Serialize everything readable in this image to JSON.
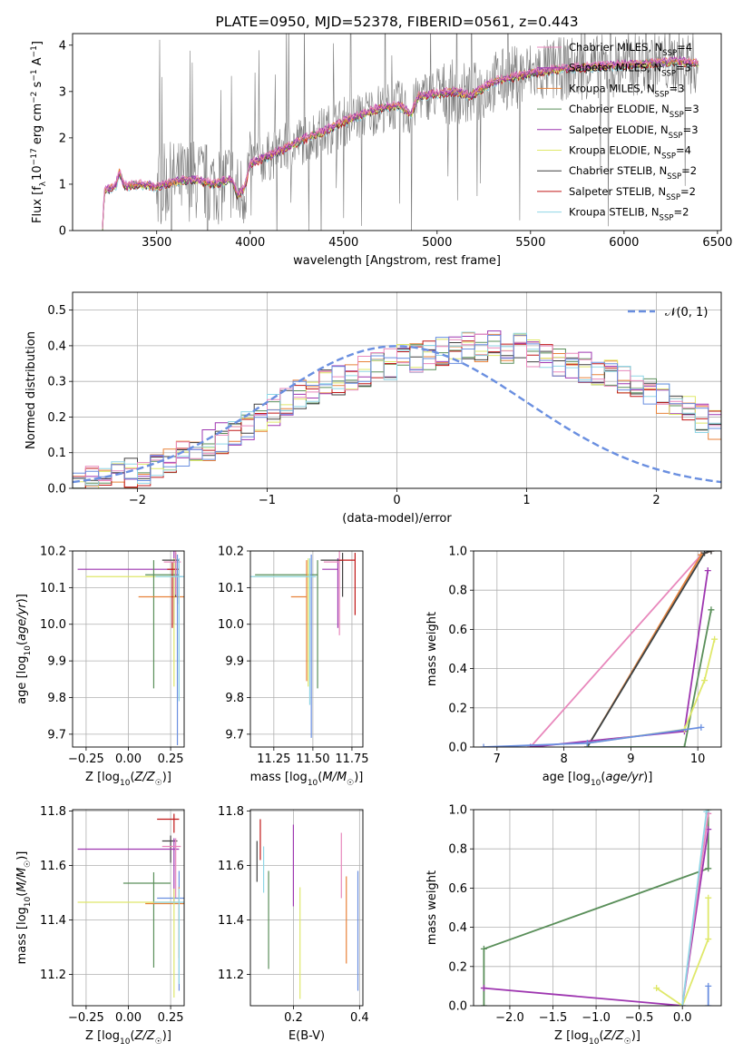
{
  "colors": {
    "orange": "#e8823a",
    "green": "#5a8f5a",
    "purple": "#9e36b0",
    "yellow": "#dfe86a",
    "dark": "#404040",
    "red": "#c01818",
    "cyan": "#8fd6e6",
    "pink": "#e888bc",
    "blue": "#6a8fe0",
    "spec": "#7a7a7a",
    "grid": "#b0b0b0"
  },
  "chart_data": [
    {
      "id": "spectrum",
      "type": "line",
      "title": "PLATE=0950, MJD=52378, FIBERID=0561, z=0.443",
      "xlabel": "wavelength [Angstrom, rest frame]",
      "ylabel": "Flux [f_λ 10^-17 erg cm^-2 s^-1 A^-1]",
      "xlim": [
        3050,
        6520
      ],
      "ylim": [
        0,
        4.25
      ],
      "xticks": [
        3500,
        4000,
        4500,
        5000,
        5500,
        6000,
        6500
      ],
      "yticks": [
        0,
        1,
        2,
        3,
        4
      ],
      "grid": false,
      "legend_position": "top-right",
      "legend": [
        {
          "prefix": "Chabrier MILES, N",
          "sub": "SSP",
          "suffix": "=4",
          "color": "pink"
        },
        {
          "prefix": "Salpeter MILES, N",
          "sub": "SSP",
          "suffix": "=3",
          "color": "purple"
        },
        {
          "prefix": "Kroupa MILES, N",
          "sub": "SSP",
          "suffix": "=3",
          "color": "orange"
        },
        {
          "prefix": "Chabrier ELODIE, N",
          "sub": "SSP",
          "suffix": "=3",
          "color": "green"
        },
        {
          "prefix": "Salpeter ELODIE, N",
          "sub": "SSP",
          "suffix": "=3",
          "color": "purple"
        },
        {
          "prefix": "Kroupa ELODIE, N",
          "sub": "SSP",
          "suffix": "=4",
          "color": "yellow"
        },
        {
          "prefix": "Chabrier STELIB, N",
          "sub": "SSP",
          "suffix": "=2",
          "color": "dark"
        },
        {
          "prefix": "Salpeter STELIB, N",
          "sub": "SSP",
          "suffix": "=2",
          "color": "red"
        },
        {
          "prefix": "Kroupa STELIB, N",
          "sub": "SSP",
          "suffix": "=2",
          "color": "cyan"
        }
      ],
      "model_shape": [
        [
          3210,
          0
        ],
        [
          3220,
          0.85
        ],
        [
          3280,
          0.95
        ],
        [
          3300,
          1.25
        ],
        [
          3330,
          0.95
        ],
        [
          3400,
          1.0
        ],
        [
          3500,
          0.95
        ],
        [
          3600,
          1.05
        ],
        [
          3700,
          1.1
        ],
        [
          3800,
          1.0
        ],
        [
          3900,
          1.1
        ],
        [
          3933,
          0.75
        ],
        [
          3968,
          0.9
        ],
        [
          4000,
          1.45
        ],
        [
          4100,
          1.6
        ],
        [
          4200,
          1.8
        ],
        [
          4300,
          2.0
        ],
        [
          4400,
          2.15
        ],
        [
          4500,
          2.35
        ],
        [
          4600,
          2.5
        ],
        [
          4700,
          2.65
        ],
        [
          4800,
          2.7
        ],
        [
          4861,
          2.5
        ],
        [
          4900,
          2.9
        ],
        [
          5000,
          2.95
        ],
        [
          5100,
          3.0
        ],
        [
          5175,
          2.9
        ],
        [
          5300,
          3.2
        ],
        [
          5500,
          3.4
        ],
        [
          5700,
          3.5
        ],
        [
          5900,
          3.55
        ],
        [
          6100,
          3.6
        ],
        [
          6300,
          3.65
        ],
        [
          6400,
          3.6
        ]
      ]
    },
    {
      "id": "histogram",
      "type": "step",
      "xlabel": "(data-model)/error",
      "ylabel": "Normed distribution",
      "xlim": [
        -2.5,
        2.5
      ],
      "ylim": [
        0,
        0.55
      ],
      "xticks": [
        -2,
        -1,
        0,
        1,
        2
      ],
      "yticks": [
        0,
        0.1,
        0.2,
        0.3,
        0.4,
        0.5
      ],
      "grid": true,
      "legend_position": "top-right",
      "reference_label": "𝒩(0, 1)",
      "reference_color": "#6a8fe0",
      "bin_width": 0.1,
      "bin_start": -2.5,
      "base_values": [
        0.01,
        0.02,
        0.02,
        0.03,
        0.04,
        0.05,
        0.06,
        0.08,
        0.09,
        0.1,
        0.12,
        0.14,
        0.16,
        0.18,
        0.2,
        0.22,
        0.24,
        0.26,
        0.28,
        0.29,
        0.3,
        0.32,
        0.33,
        0.34,
        0.35,
        0.36,
        0.37,
        0.37,
        0.38,
        0.39,
        0.4,
        0.4,
        0.4,
        0.39,
        0.39,
        0.38,
        0.37,
        0.36,
        0.35,
        0.34,
        0.33,
        0.32,
        0.3,
        0.29,
        0.27,
        0.25,
        0.24,
        0.22,
        0.2,
        0.18,
        0.16,
        0.14,
        0.13,
        0.11,
        0.1,
        0.09,
        0.08,
        0.07,
        0.06,
        0.05,
        0.04,
        0.03,
        0.03,
        0.02,
        0.02,
        0.01
      ]
    },
    {
      "id": "age_vs_Z",
      "type": "errorbar",
      "xlabel": "Z [log10(Z/Z☉)]",
      "ylabel": "age  [log10(age/yr)]",
      "xlim": [
        -0.33,
        0.33
      ],
      "ylim": [
        9.665,
        10.2
      ],
      "xticks": [
        -0.25,
        0.0,
        0.25
      ],
      "xticklabels": [
        "−0.25",
        "0.00",
        "0.25"
      ],
      "yticks": [
        9.7,
        9.8,
        9.9,
        10.0,
        10.1,
        10.2
      ],
      "points": [
        {
          "color": "purple",
          "x": 0.27,
          "xerr": [
            0.57,
            0.03
          ],
          "y": 10.15,
          "yerr": [
            0.15,
            0.05
          ]
        },
        {
          "color": "yellow",
          "x": 0.27,
          "xerr": [
            0.52,
            0.03
          ],
          "y": 10.13,
          "yerr": [
            0.3,
            0.05
          ]
        },
        {
          "color": "green",
          "x": 0.15,
          "xerr": [
            0.05,
            0.15
          ],
          "y": 10.135,
          "yerr": [
            0.31,
            0.04
          ]
        },
        {
          "color": "orange",
          "x": 0.3,
          "xerr": [
            0.24,
            0.03
          ],
          "y": 10.075,
          "yerr": [
            0.02,
            0.1
          ]
        },
        {
          "color": "dark",
          "x": 0.28,
          "xerr": [
            0.08,
            0.02
          ],
          "y": 10.175,
          "yerr": [
            0.1,
            0.02
          ]
        },
        {
          "color": "red",
          "x": 0.26,
          "xerr": [
            0.03,
            0.04
          ],
          "y": 10.15,
          "yerr": [
            0.16,
            0.02
          ]
        },
        {
          "color": "pink",
          "x": 0.28,
          "xerr": [
            0.07,
            0.03
          ],
          "y": 10.17,
          "yerr": [
            0.09,
            0.03
          ]
        },
        {
          "color": "blue",
          "x": 0.29,
          "xerr": [
            0.02,
            0.03
          ],
          "y": 10.13,
          "yerr": [
            0.46,
            0.06
          ]
        },
        {
          "color": "cyan",
          "x": 0.3,
          "xerr": [
            0.14,
            0.03
          ],
          "y": 10.13,
          "yerr": [
            0.34,
            0.05
          ]
        }
      ]
    },
    {
      "id": "age_vs_mass",
      "type": "errorbar",
      "xlabel": "mass [log10(M/M☉)]",
      "xlim": [
        11.1,
        11.82
      ],
      "ylim": [
        9.665,
        10.2
      ],
      "xticks": [
        11.25,
        11.5,
        11.75
      ],
      "yticks": [
        9.7,
        9.8,
        9.9,
        10.0,
        10.1,
        10.2
      ],
      "points": [
        {
          "color": "green",
          "x": 11.53,
          "xerr": [
            0.4,
            0.0
          ],
          "y": 10.135,
          "yerr": [
            0.31,
            0.04
          ]
        },
        {
          "color": "yellow",
          "x": 11.47,
          "xerr": [
            0.35,
            0.0
          ],
          "y": 10.13,
          "yerr": [
            0.3,
            0.05
          ]
        },
        {
          "color": "orange",
          "x": 11.46,
          "xerr": [
            0.1,
            0.0
          ],
          "y": 10.075,
          "yerr": [
            0.23,
            0.1
          ]
        },
        {
          "color": "blue",
          "x": 11.49,
          "xerr": [
            0.0,
            0.0
          ],
          "y": 10.13,
          "yerr": [
            0.44,
            0.06
          ]
        },
        {
          "color": "purple",
          "x": 11.66,
          "xerr": [
            0.1,
            0.0
          ],
          "y": 10.15,
          "yerr": [
            0.16,
            0.03
          ]
        },
        {
          "color": "pink",
          "x": 11.67,
          "xerr": [
            0.1,
            0.0
          ],
          "y": 10.17,
          "yerr": [
            0.2,
            0.03
          ]
        },
        {
          "color": "dark",
          "x": 11.69,
          "xerr": [
            0.14,
            0.0
          ],
          "y": 10.175,
          "yerr": [
            0.1,
            0.02
          ]
        },
        {
          "color": "red",
          "x": 11.77,
          "xerr": [
            0.1,
            0.0
          ],
          "y": 10.175,
          "yerr": [
            0.15,
            0.02
          ]
        },
        {
          "color": "cyan",
          "x": 11.48,
          "xerr": [
            0.38,
            0.04
          ],
          "y": 10.13,
          "yerr": [
            0.35,
            0.05
          ]
        }
      ]
    },
    {
      "id": "weight_vs_age",
      "type": "line",
      "xlabel": "age  [log10(age/yr)]",
      "ylabel": "mass weight",
      "xlim": [
        6.65,
        10.35
      ],
      "ylim": [
        0,
        1.0
      ],
      "xticks": [
        7,
        8,
        9,
        10
      ],
      "yticks": [
        0,
        0.2,
        0.4,
        0.6,
        0.8,
        1.0
      ],
      "series": [
        {
          "color": "pink",
          "points": [
            [
              7.5,
              0.0
            ],
            [
              10.05,
              0.98
            ],
            [
              10.2,
              1.0
            ]
          ]
        },
        {
          "color": "orange",
          "points": [
            [
              8.35,
              0.0
            ],
            [
              10.05,
              0.98
            ],
            [
              10.2,
              1.0
            ]
          ]
        },
        {
          "color": "cyan",
          "points": [
            [
              8.35,
              0.0
            ],
            [
              10.1,
              0.99
            ],
            [
              10.2,
              1.0
            ]
          ]
        },
        {
          "color": "dark",
          "points": [
            [
              8.35,
              0.0
            ],
            [
              10.1,
              0.99
            ],
            [
              10.2,
              1.0
            ]
          ]
        },
        {
          "color": "purple",
          "points": [
            [
              7.5,
              0.0
            ],
            [
              9.8,
              0.08
            ],
            [
              10.15,
              0.9
            ]
          ]
        },
        {
          "color": "green",
          "points": [
            [
              8.35,
              0.0
            ],
            [
              9.8,
              0.0
            ],
            [
              10.2,
              0.7
            ]
          ]
        },
        {
          "color": "yellow",
          "points": [
            [
              8.35,
              0.02
            ],
            [
              9.8,
              0.09
            ],
            [
              10.1,
              0.34
            ],
            [
              10.25,
              0.55
            ]
          ]
        },
        {
          "color": "blue",
          "points": [
            [
              6.8,
              0.0
            ],
            [
              8.35,
              0.02
            ],
            [
              10.05,
              0.1
            ]
          ]
        }
      ]
    },
    {
      "id": "mass_vs_Z",
      "type": "errorbar",
      "xlabel": "Z [log10(Z/Z☉)]",
      "ylabel": "mass [log10(M/M☉)]",
      "xlim": [
        -0.33,
        0.33
      ],
      "ylim": [
        11.085,
        11.805
      ],
      "xticks": [
        -0.25,
        0.0,
        0.25
      ],
      "xticklabels": [
        "−0.25",
        "0.00",
        "0.25"
      ],
      "yticks": [
        11.2,
        11.4,
        11.6,
        11.8
      ],
      "points": [
        {
          "color": "red",
          "x": 0.27,
          "xerr": [
            0.1,
            0.03
          ],
          "y": 11.77,
          "yerr": [
            0.05,
            0.02
          ]
        },
        {
          "color": "dark",
          "x": 0.25,
          "xerr": [
            0.05,
            0.04
          ],
          "y": 11.69,
          "yerr": [
            0.08,
            0.02
          ]
        },
        {
          "color": "purple",
          "x": 0.27,
          "xerr": [
            0.57,
            0.03
          ],
          "y": 11.66,
          "yerr": [
            0.2,
            0.04
          ]
        },
        {
          "color": "pink",
          "x": 0.28,
          "xerr": [
            0.08,
            0.03
          ],
          "y": 11.67,
          "yerr": [
            0.19,
            0.03
          ]
        },
        {
          "color": "green",
          "x": 0.15,
          "xerr": [
            0.18,
            0.1
          ],
          "y": 11.535,
          "yerr": [
            0.31,
            0.04
          ]
        },
        {
          "color": "blue",
          "x": 0.3,
          "xerr": [
            0.13,
            0.03
          ],
          "y": 11.48,
          "yerr": [
            0.34,
            0.1
          ]
        },
        {
          "color": "orange",
          "x": 0.3,
          "xerr": [
            0.2,
            0.03
          ],
          "y": 11.46,
          "yerr": [
            0.2,
            0.06
          ]
        },
        {
          "color": "yellow",
          "x": 0.27,
          "xerr": [
            0.57,
            0.03
          ],
          "y": 11.465,
          "yerr": [
            0.35,
            0.05
          ]
        },
        {
          "color": "cyan",
          "x": 0.3,
          "xerr": [
            0.15,
            0.03
          ],
          "y": 11.465,
          "yerr": [
            0.3,
            0.05
          ]
        }
      ]
    },
    {
      "id": "mass_vs_ebv",
      "type": "errorbar",
      "xlabel": "E(B-V)",
      "xlim": [
        0.07,
        0.41
      ],
      "ylim": [
        11.085,
        11.805
      ],
      "xticks": [
        0.2,
        0.4
      ],
      "yticks": [
        11.2,
        11.4,
        11.6,
        11.8
      ],
      "points": [
        {
          "color": "dark",
          "x": 0.09,
          "y": 11.6,
          "yerr": [
            0.06,
            0.09
          ]
        },
        {
          "color": "red",
          "x": 0.1,
          "y": 11.7,
          "yerr": [
            0.08,
            0.07
          ]
        },
        {
          "color": "cyan",
          "x": 0.11,
          "y": 11.58,
          "yerr": [
            0.08,
            0.09
          ]
        },
        {
          "color": "green",
          "x": 0.125,
          "y": 11.4,
          "yerr": [
            0.18,
            0.18
          ]
        },
        {
          "color": "purple",
          "x": 0.2,
          "y": 11.59,
          "yerr": [
            0.14,
            0.16
          ]
        },
        {
          "color": "yellow",
          "x": 0.22,
          "y": 11.33,
          "yerr": [
            0.22,
            0.19
          ]
        },
        {
          "color": "pink",
          "x": 0.345,
          "y": 11.6,
          "yerr": [
            0.12,
            0.12
          ]
        },
        {
          "color": "orange",
          "x": 0.36,
          "y": 11.4,
          "yerr": [
            0.16,
            0.16
          ]
        },
        {
          "color": "blue",
          "x": 0.395,
          "y": 11.36,
          "yerr": [
            0.22,
            0.22
          ]
        }
      ]
    },
    {
      "id": "weight_vs_Z",
      "type": "line",
      "xlabel": "Z [log10(Z/Z☉)]",
      "ylabel": "mass weight",
      "xlim": [
        -2.42,
        0.45
      ],
      "ylim": [
        0,
        1.0
      ],
      "xticks": [
        -2.0,
        -1.5,
        -1.0,
        -0.5,
        0.0
      ],
      "xticklabels": [
        "−2.0",
        "−1.5",
        "−1.0",
        "−0.5",
        "0.0"
      ],
      "yticks": [
        0,
        0.2,
        0.4,
        0.6,
        0.8,
        1.0
      ],
      "series": [
        {
          "color": "green",
          "points": [
            [
              -2.3,
              0.0
            ],
            [
              -2.3,
              0.29
            ],
            [
              0.3,
              0.7
            ],
            [
              0.3,
              1.0
            ]
          ]
        },
        {
          "color": "purple",
          "points": [
            [
              -2.3,
              0.09
            ],
            [
              0.0,
              0.0
            ],
            [
              0.3,
              0.9
            ]
          ]
        },
        {
          "color": "yellow",
          "points": [
            [
              -0.3,
              0.09
            ],
            [
              0.0,
              0.0
            ],
            [
              0.3,
              0.34
            ],
            [
              0.3,
              0.55
            ]
          ]
        },
        {
          "color": "pink",
          "points": [
            [
              0.0,
              0.0
            ],
            [
              0.3,
              0.98
            ]
          ]
        },
        {
          "color": "cyan",
          "points": [
            [
              0.0,
              0.0
            ],
            [
              0.28,
              0.99
            ]
          ]
        },
        {
          "color": "blue",
          "points": [
            [
              0.3,
              0.1
            ],
            [
              0.3,
              0.0
            ]
          ]
        }
      ]
    }
  ]
}
